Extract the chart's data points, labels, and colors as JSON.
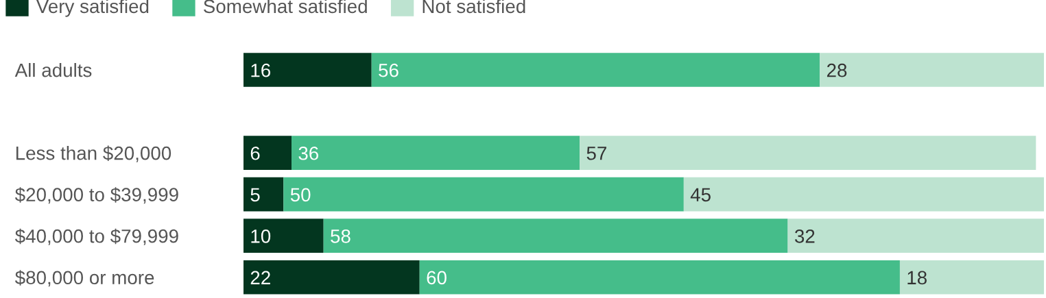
{
  "chart_data": {
    "type": "bar",
    "orientation": "horizontal",
    "stacked": true,
    "data_labels": true,
    "legend": "top left",
    "tick_labels": "y",
    "categories": [
      "All adults",
      null,
      "Less than $20,000",
      "$20,000 to $39,999",
      "$40,000 to $79,999",
      "$80,000 or more"
    ],
    "series": [
      {
        "name": "Very satisfied",
        "color": "#03361f",
        "values": [
          16,
          null,
          6,
          5,
          10,
          22
        ]
      },
      {
        "name": "Somewhat satisfied",
        "color": "#45bd8a",
        "values": [
          56,
          null,
          36,
          50,
          58,
          60
        ]
      },
      {
        "name": "Not satisfied",
        "color": "#bde3d0",
        "values": [
          28,
          null,
          57,
          45,
          32,
          18
        ]
      }
    ]
  }
}
